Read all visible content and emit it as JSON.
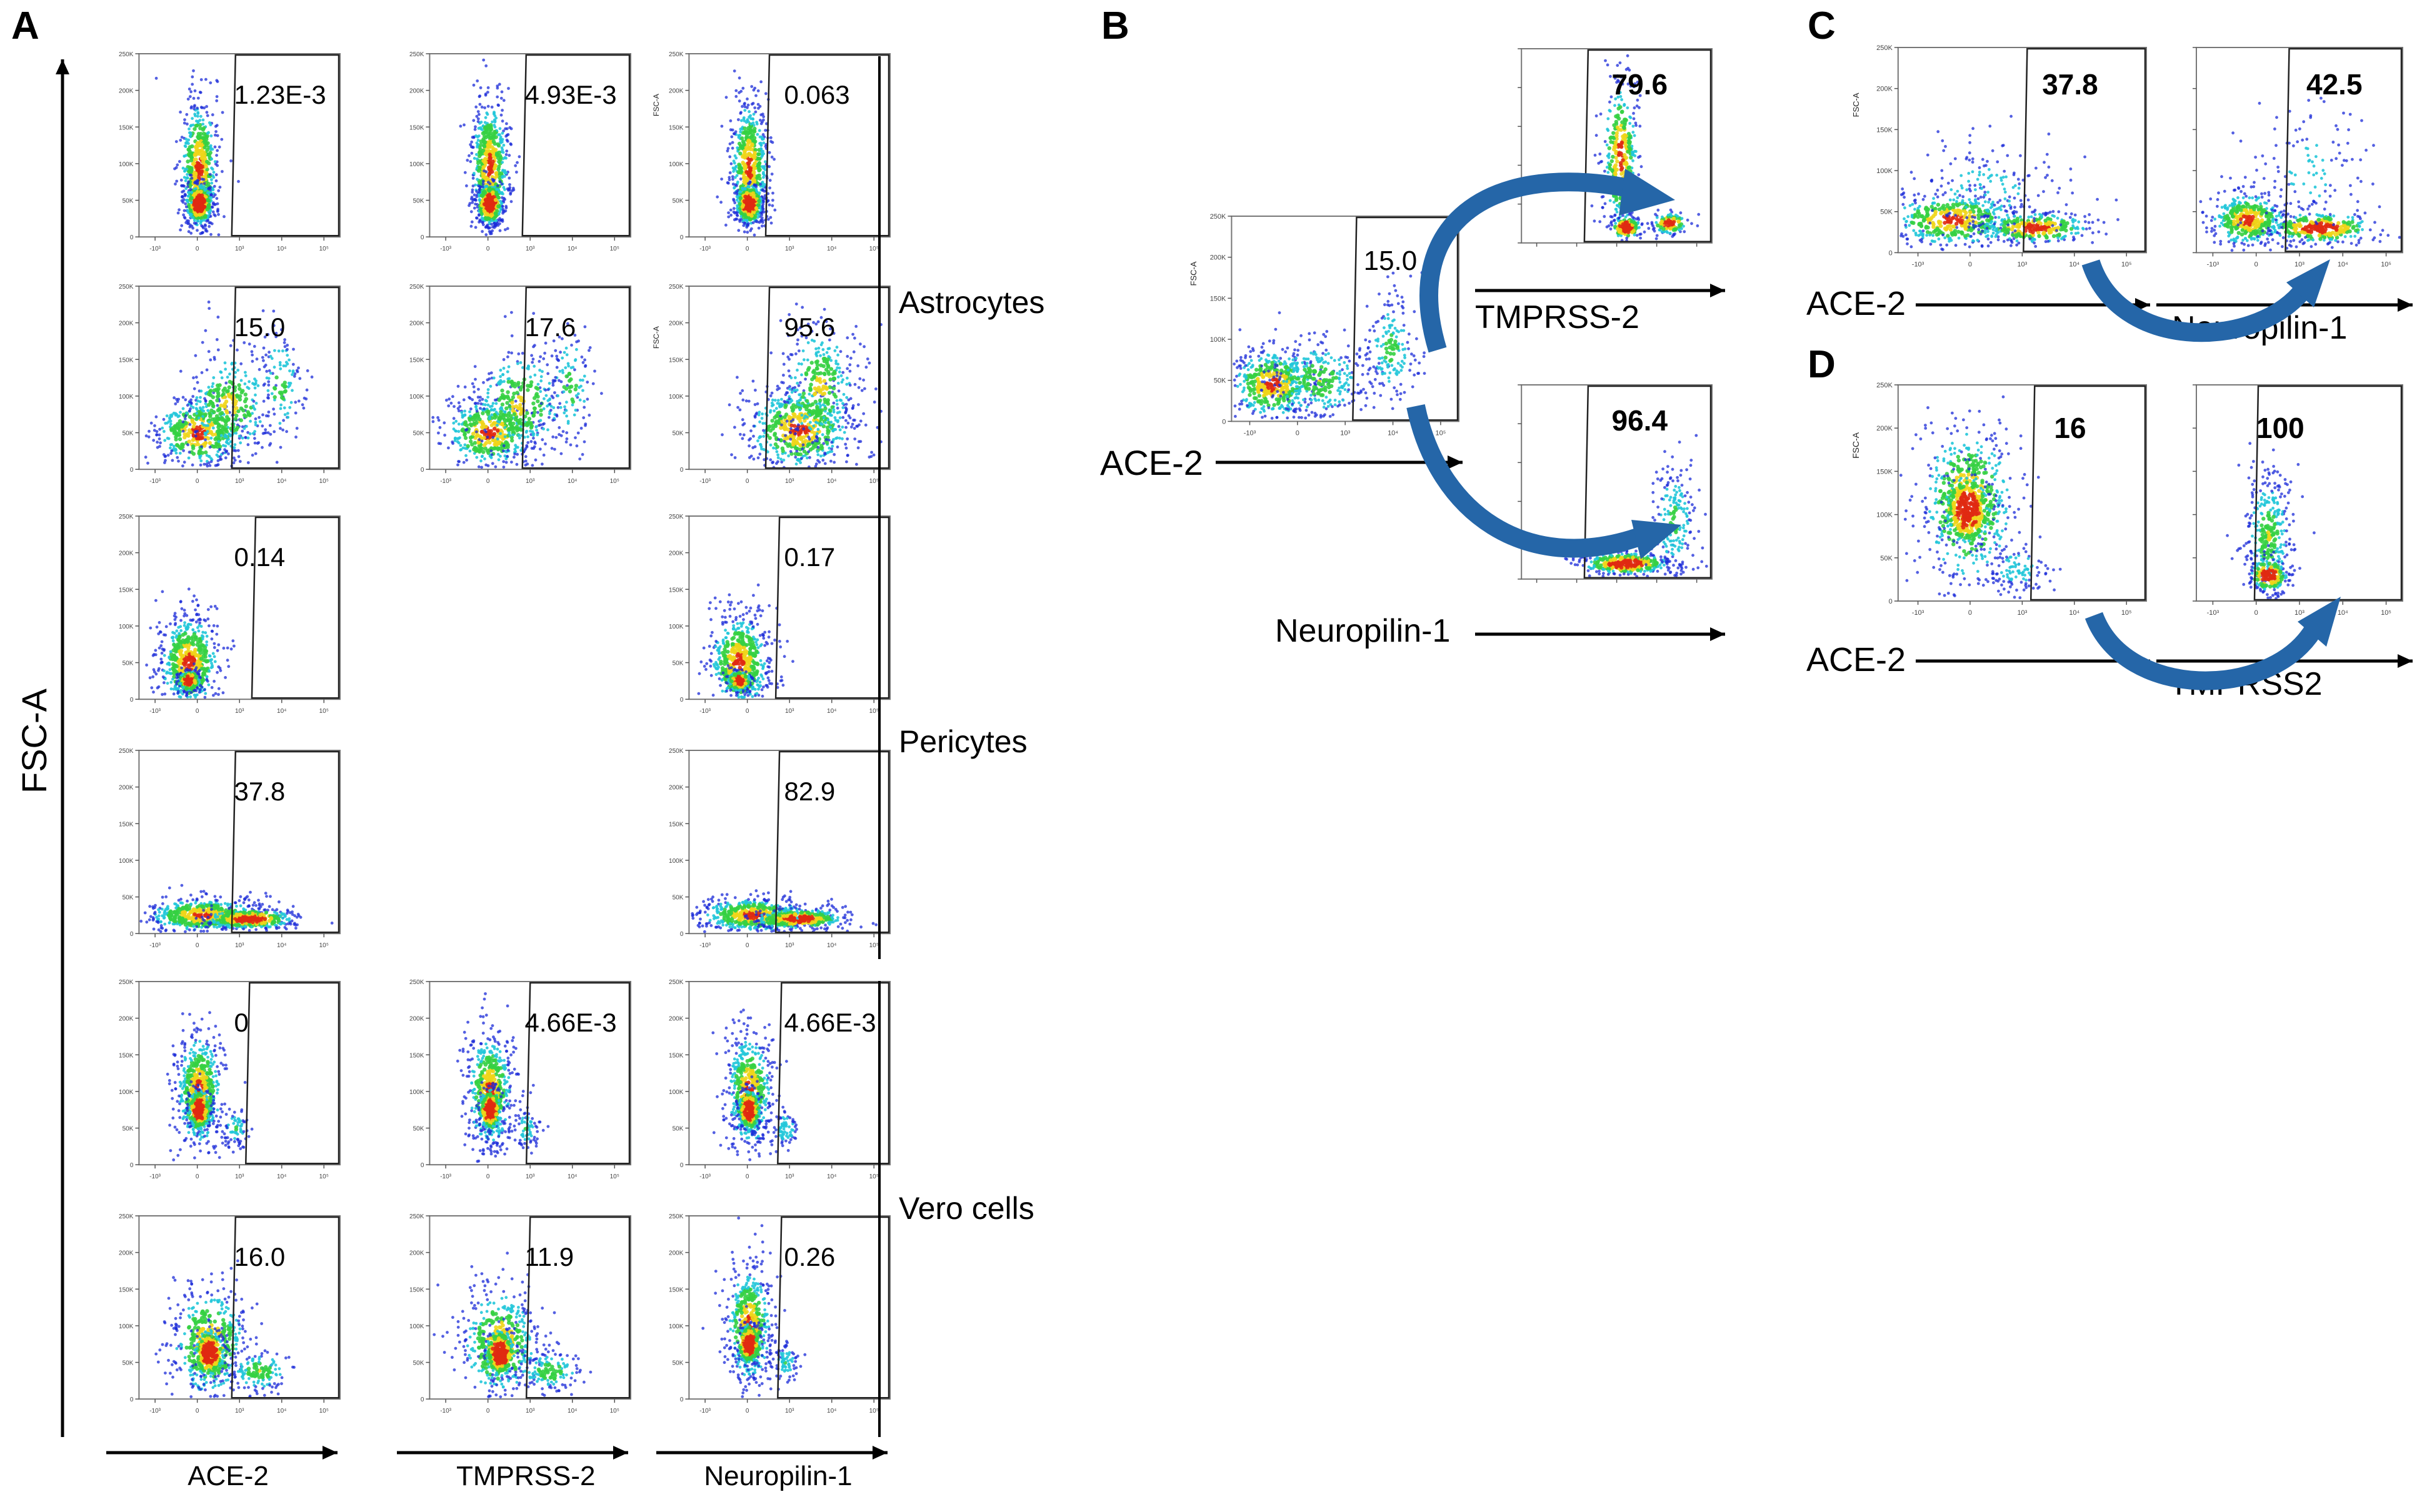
{
  "figure": {
    "panel_letters": [
      "A",
      "B",
      "C",
      "D"
    ]
  },
  "colors": {
    "density_low": "#1b2bd8",
    "density_mid": "#22c7d9",
    "density_high": "#35d043",
    "density_peak": "#f0d51a",
    "density_core": "#e02a12",
    "arrow": "#2566a8",
    "axis": "#000000"
  },
  "chart_data": [
    {
      "panel": "A",
      "type": "scatter",
      "subtype": "flow-cytometry-density-grid",
      "ylabel": "FSC-A",
      "columns": [
        "ACE-2",
        "TMPRSS-2",
        "Neuropilin-1"
      ],
      "groups": [
        {
          "name": "Astrocytes",
          "rows": [
            0,
            1
          ]
        },
        {
          "name": "Pericytes",
          "rows": [
            2,
            3
          ]
        },
        {
          "name": "Vero cells",
          "rows": [
            4,
            5
          ]
        }
      ],
      "gate_percentages": [
        [
          "1.23E-3",
          "4.93E-3",
          "0.063"
        ],
        [
          "15.0",
          "17.6",
          "95.6"
        ],
        [
          "0.14",
          null,
          "0.17"
        ],
        [
          "37.8",
          null,
          "82.9"
        ],
        [
          "0",
          "4.66E-3",
          "4.66E-3"
        ],
        [
          "16.0",
          "11.9",
          "0.26"
        ]
      ],
      "plot_ylabel_text": "FSC-A",
      "y_tick_labels": [
        "250K",
        "200K",
        "150K",
        "100K",
        "50K",
        "0"
      ],
      "x_tick_labels": [
        "-10³",
        "0",
        "10³",
        "10⁴",
        "10⁵"
      ]
    },
    {
      "panel": "B",
      "type": "scatter",
      "subtype": "flow-cytometry-gating-sequence",
      "source": {
        "x_label": "ACE-2",
        "y_label": "FSC-A",
        "gate_value": "15.0"
      },
      "targets": [
        {
          "x_label": "TMPRSS-2",
          "gate_value": "79.6"
        },
        {
          "x_label": "Neuropilin-1",
          "gate_value": "96.4"
        }
      ],
      "y_tick_labels": [
        "250K",
        "200K",
        "150K",
        "100K",
        "50K",
        "0"
      ]
    },
    {
      "panel": "C",
      "type": "scatter",
      "subtype": "flow-cytometry-gating-sequence",
      "source": {
        "x_label": "ACE-2",
        "y_label": "FSC-A",
        "gate_value": "37.8"
      },
      "targets": [
        {
          "x_label": "Neuropilin-1",
          "gate_value": "42.5"
        }
      ],
      "y_tick_labels": [
        "250K",
        "200K",
        "150K",
        "100K",
        "50K",
        "0"
      ]
    },
    {
      "panel": "D",
      "type": "scatter",
      "subtype": "flow-cytometry-gating-sequence",
      "source": {
        "x_label": "ACE-2",
        "y_label": "FSC-A",
        "gate_value": "16"
      },
      "targets": [
        {
          "x_label": "TMPRSS2",
          "gate_value": "100"
        }
      ],
      "y_tick_labels": [
        "250K",
        "200K",
        "150K",
        "100K",
        "50K",
        "0"
      ]
    }
  ]
}
